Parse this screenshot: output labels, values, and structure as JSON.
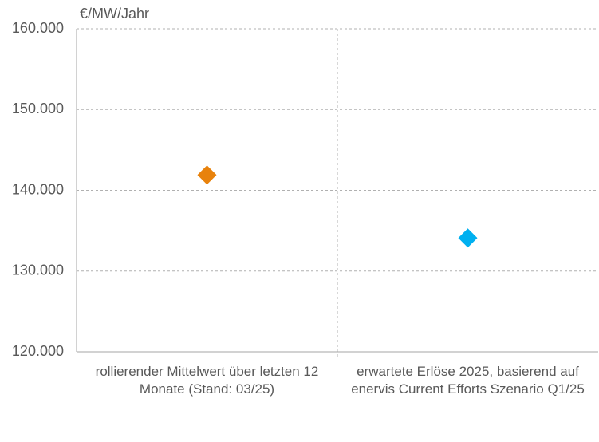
{
  "chart_data": {
    "type": "dot",
    "y_unit_label": "€/MW/Jahr",
    "categories": [
      "rollierender Mittelwert über letzten 12 Monate (Stand: 03/25)",
      "erwartete Erlöse 2025, basierend auf enervis Current Efforts Szenario Q1/25"
    ],
    "values": [
      141900,
      134100
    ],
    "colors": [
      "#e8820c",
      "#00b0f0"
    ],
    "ylim": [
      120000,
      160000
    ],
    "yticks": [
      {
        "value": 120000,
        "label": "120.000"
      },
      {
        "value": 130000,
        "label": "130.000"
      },
      {
        "value": 140000,
        "label": "140.000"
      },
      {
        "value": 150000,
        "label": "150.000"
      },
      {
        "value": 160000,
        "label": "160.000"
      }
    ],
    "grid": true
  }
}
